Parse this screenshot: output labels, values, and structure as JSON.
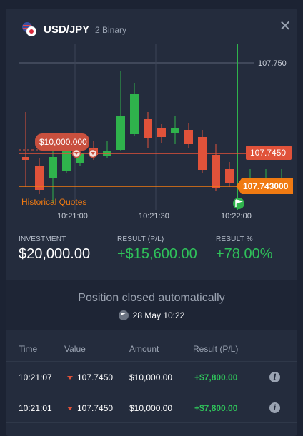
{
  "header": {
    "pair": "USD/JPY",
    "type": "2 Binary",
    "close_icon": "close-icon",
    "flag_icon": "usd-jpy-flag-icon"
  },
  "chart": {
    "price_label_top": "107.750",
    "price_tag_red": "107.7450",
    "price_tag_orange": "107.743000",
    "investment_tag": "$10,000.000",
    "history_link": "Historical Quotes",
    "time_ticks": [
      "10:21:00",
      "10:21:30",
      "10:22:00"
    ],
    "colors": {
      "up": "#2fb34c",
      "down": "#e0523a",
      "orange": "#f07a12"
    }
  },
  "stats": {
    "investment_label": "INVESTMENT",
    "investment_value": "$20,000.00",
    "result_label": "RESULT (P/L)",
    "result_value": "+$15,600.00",
    "percent_label": "RESULT %",
    "percent_value": "+78.00%"
  },
  "closed": {
    "message": "Position closed automatically",
    "date": "28 May 10:22"
  },
  "table": {
    "headers": [
      "Time",
      "Value",
      "Amount",
      "Result (P/L)"
    ],
    "rows": [
      {
        "time": "10:21:07",
        "value": "107.7450",
        "amount": "$10,000.00",
        "result": "+$7,800.00"
      },
      {
        "time": "10:21:01",
        "value": "107.7450",
        "amount": "$10,000.00",
        "result": "+$7,800.00"
      }
    ]
  }
}
